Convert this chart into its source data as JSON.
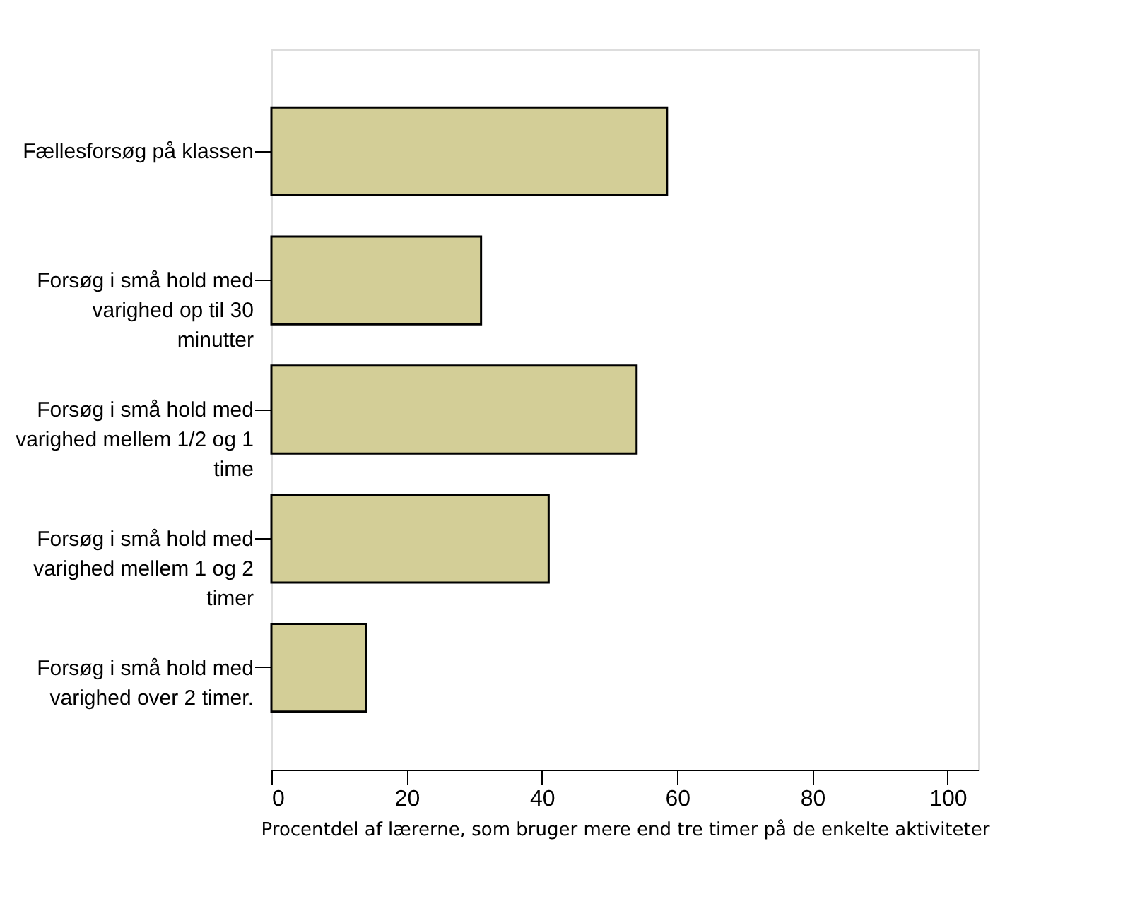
{
  "chart_data": {
    "type": "bar",
    "orientation": "horizontal",
    "categories": [
      "Fællesforsøg på klassen",
      "Forsøg i små hold med\nvarighed op til 30\nminutter",
      "Forsøg i små hold med\nvarighed mellem 1/2 og 1\ntime",
      "Forsøg i små hold med\nvarighed  mellem 1 og 2\ntimer",
      "Forsøg i små hold med\nvarighed over 2 timer."
    ],
    "values": [
      58.5,
      31,
      54,
      41,
      14
    ],
    "color": "#d3ce97",
    "xlim": [
      0,
      104.5
    ],
    "xticks": [
      0,
      20,
      40,
      60,
      80,
      100
    ],
    "xlabel": "Procentdel af lærerne, som bruger mere end tre timer på de enkelte aktiviteter",
    "grid": false
  }
}
